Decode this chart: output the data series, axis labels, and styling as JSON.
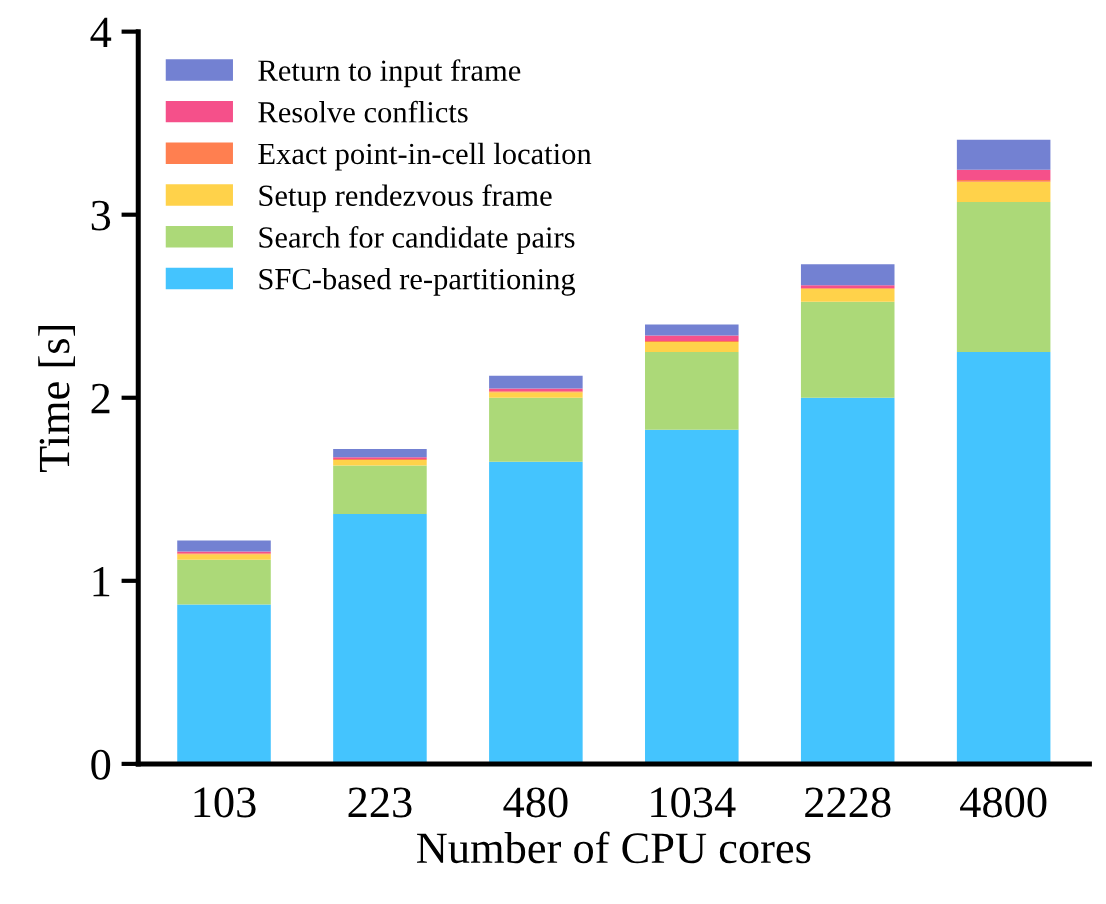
{
  "chart_data": {
    "type": "bar",
    "stacked": true,
    "xlabel": "Number of CPU cores",
    "ylabel": "Time [s]",
    "categories": [
      "103",
      "223",
      "480",
      "1034",
      "2228",
      "4800"
    ],
    "series": [
      {
        "name": "SFC-based re-partitioning",
        "color": "#44c4fe",
        "values": [
          0.87,
          1.365,
          1.65,
          1.825,
          2.0,
          2.25
        ]
      },
      {
        "name": "Search for candidate pairs",
        "color": "#acd978",
        "values": [
          0.245,
          0.265,
          0.35,
          0.425,
          0.525,
          0.82
        ]
      },
      {
        "name": "Setup rendezvous frame",
        "color": "#ffd24a",
        "values": [
          0.03,
          0.03,
          0.03,
          0.055,
          0.07,
          0.11
        ]
      },
      {
        "name": "Exact point-in-cell location",
        "color": "#ff7f50",
        "values": [
          0.005,
          0.005,
          0.005,
          0.005,
          0.005,
          0.01
        ]
      },
      {
        "name": "Resolve conflicts",
        "color": "#f5508a",
        "values": [
          0.01,
          0.01,
          0.015,
          0.03,
          0.015,
          0.055
        ]
      },
      {
        "name": "Return to input frame",
        "color": "#7381d2",
        "values": [
          0.06,
          0.045,
          0.07,
          0.06,
          0.115,
          0.165
        ]
      }
    ],
    "ylim": [
      0,
      4
    ],
    "yticks": [
      0,
      1,
      2,
      3,
      4
    ],
    "grid": false,
    "legend": "top left"
  }
}
